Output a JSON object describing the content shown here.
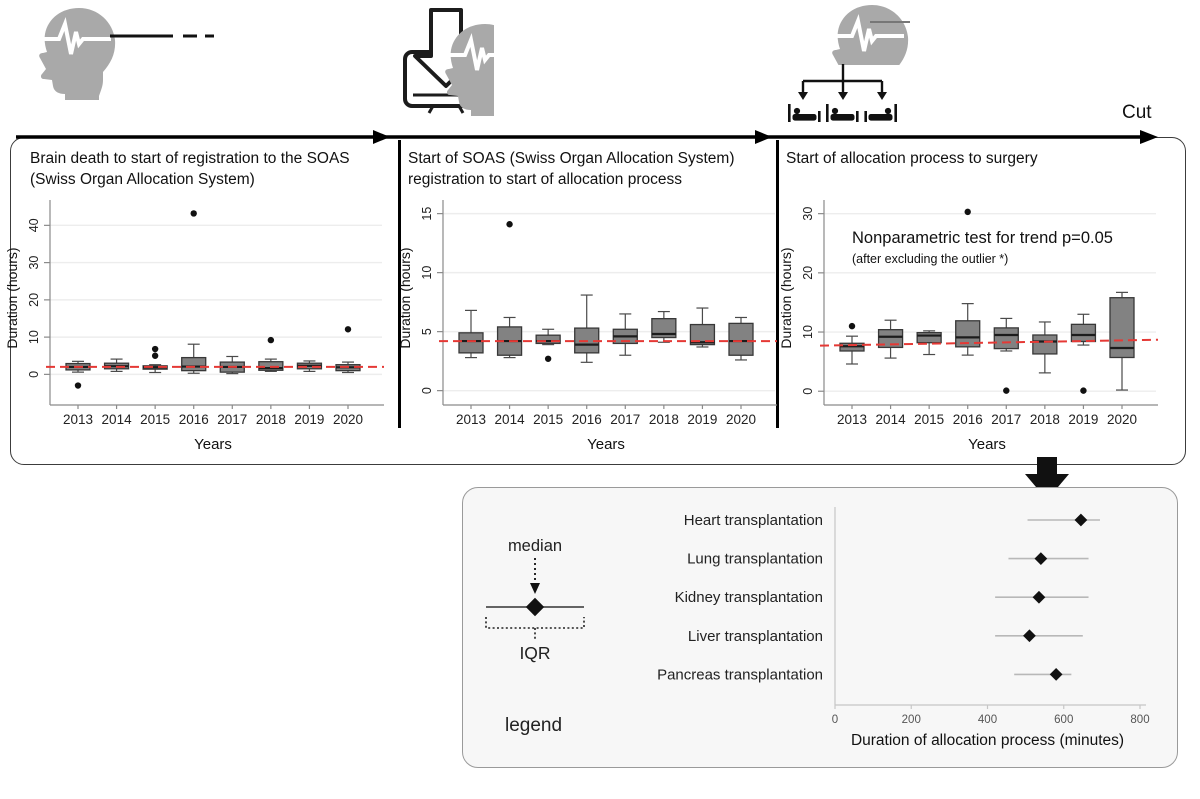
{
  "header": {
    "cut_label": "Cut",
    "icons": [
      {
        "name": "brain-death-head-eeg-icon"
      },
      {
        "name": "soas-registration-monitor-download-icon"
      },
      {
        "name": "allocation-head-to-beds-icon"
      }
    ]
  },
  "colors": {
    "accent_red": "#E53935",
    "box_fill": "#828282",
    "box_stroke": "#383838",
    "panel_bg": "#F7F7F7",
    "gridline": "#ededed"
  },
  "legend_box": {
    "median_label": "median",
    "iqr_label": "IQR",
    "caption": "legend"
  },
  "chart_data": [
    {
      "id": "phase1",
      "type": "box",
      "title": "Brain death to start of registration to the SOAS (Swiss Organ Allocation System)",
      "xlabel": "Years",
      "ylabel": "Duration (hours)",
      "categories": [
        "2013",
        "2014",
        "2015",
        "2016",
        "2017",
        "2018",
        "2019",
        "2020"
      ],
      "ylim": [
        -5,
        46
      ],
      "yticks": [
        0,
        10,
        20,
        30,
        40
      ],
      "refline": {
        "style": "dashed",
        "color": "#E53935",
        "y": 2
      },
      "boxes": [
        {
          "lo": 0.6,
          "q1": 1.2,
          "med": 2.0,
          "q3": 2.9,
          "hi": 3.5,
          "outliers": [
            -3
          ]
        },
        {
          "lo": 0.8,
          "q1": 1.5,
          "med": 2.2,
          "q3": 3.0,
          "hi": 4.1,
          "outliers": []
        },
        {
          "lo": 0.5,
          "q1": 1.4,
          "med": 1.9,
          "q3": 2.3,
          "hi": 2.6,
          "outliers": [
            5,
            6.8
          ]
        },
        {
          "lo": 0.3,
          "q1": 1.0,
          "med": 2.1,
          "q3": 4.5,
          "hi": 8.1,
          "outliers": [
            43.2
          ]
        },
        {
          "lo": 0.2,
          "q1": 0.6,
          "med": 2.0,
          "q3": 3.3,
          "hi": 4.8,
          "outliers": []
        },
        {
          "lo": 0.8,
          "q1": 1.1,
          "med": 1.7,
          "q3": 3.4,
          "hi": 4.1,
          "outliers": [
            9.2
          ]
        },
        {
          "lo": 0.8,
          "q1": 1.5,
          "med": 2.3,
          "q3": 3.0,
          "hi": 3.6,
          "outliers": []
        },
        {
          "lo": 0.5,
          "q1": 1.0,
          "med": 1.9,
          "q3": 2.6,
          "hi": 3.3,
          "outliers": [
            12.1
          ]
        }
      ]
    },
    {
      "id": "phase2",
      "type": "box",
      "title": "Start of SOAS (Swiss Organ Allocation System) registration to start of allocation process",
      "xlabel": "Years",
      "ylabel": "Duration (hours)",
      "categories": [
        "2013",
        "2014",
        "2015",
        "2016",
        "2017",
        "2018",
        "2019",
        "2020"
      ],
      "ylim": [
        -0.2,
        15.9
      ],
      "yticks": [
        0,
        5,
        10,
        15
      ],
      "refline": {
        "style": "dashed",
        "color": "#E53935",
        "y": 4.2
      },
      "boxes": [
        {
          "lo": 2.8,
          "q1": 3.2,
          "med": 4.2,
          "q3": 4.9,
          "hi": 6.8,
          "outliers": []
        },
        {
          "lo": 2.8,
          "q1": 3.0,
          "med": 4.2,
          "q3": 5.4,
          "hi": 6.2,
          "outliers": [
            14.1
          ]
        },
        {
          "lo": 3.9,
          "q1": 4.0,
          "med": 4.2,
          "q3": 4.7,
          "hi": 5.2,
          "outliers": [
            2.7
          ]
        },
        {
          "lo": 2.4,
          "q1": 3.2,
          "med": 3.9,
          "q3": 5.3,
          "hi": 8.1,
          "outliers": []
        },
        {
          "lo": 3.0,
          "q1": 4.0,
          "med": 4.6,
          "q3": 5.2,
          "hi": 6.5,
          "outliers": []
        },
        {
          "lo": 4.1,
          "q1": 4.5,
          "med": 4.8,
          "q3": 6.1,
          "hi": 6.7,
          "outliers": []
        },
        {
          "lo": 3.7,
          "q1": 3.9,
          "med": 4.1,
          "q3": 5.6,
          "hi": 7.0,
          "outliers": []
        },
        {
          "lo": 2.6,
          "q1": 3.0,
          "med": 4.2,
          "q3": 5.7,
          "hi": 6.2,
          "outliers": []
        }
      ]
    },
    {
      "id": "phase3",
      "type": "box",
      "title": "Start of allocation process to surgery",
      "xlabel": "Years",
      "ylabel": "Duration (hours)",
      "categories": [
        "2013",
        "2014",
        "2015",
        "2016",
        "2017",
        "2018",
        "2019",
        "2020"
      ],
      "ylim": [
        -0.3,
        31.8
      ],
      "yticks": [
        0,
        10,
        20,
        30
      ],
      "refline": {
        "style": "dashed",
        "color": "#E53935",
        "y1": 7.7,
        "y2": 8.7
      },
      "annotation": {
        "line1": "Nonparametric test for trend p=0.05",
        "line2": "(after excluding the outlier *)"
      },
      "boxes": [
        {
          "lo": 4.6,
          "q1": 6.8,
          "med": 7.6,
          "q3": 8.1,
          "hi": 9.3,
          "outliers": [
            11
          ]
        },
        {
          "lo": 5.6,
          "q1": 7.4,
          "med": 9.2,
          "q3": 10.4,
          "hi": 12.0,
          "outliers": []
        },
        {
          "lo": 6.2,
          "q1": 8.2,
          "med": 9.4,
          "q3": 9.9,
          "hi": 10.2,
          "outliers": []
        },
        {
          "lo": 6.1,
          "q1": 7.5,
          "med": 9.1,
          "q3": 11.9,
          "hi": 14.8,
          "outliers": [
            30.3
          ]
        },
        {
          "lo": 6.8,
          "q1": 7.2,
          "med": 9.5,
          "q3": 10.7,
          "hi": 12.3,
          "outliers": [
            0.1
          ]
        },
        {
          "lo": 3.1,
          "q1": 6.3,
          "med": 8.4,
          "q3": 9.5,
          "hi": 11.7,
          "outliers": []
        },
        {
          "lo": 7.8,
          "q1": 8.4,
          "med": 9.5,
          "q3": 11.3,
          "hi": 13.0,
          "outliers": [
            0.1
          ]
        },
        {
          "lo": 0.2,
          "q1": 5.7,
          "med": 7.3,
          "q3": 15.8,
          "hi": 16.7,
          "outliers": []
        }
      ]
    },
    {
      "id": "allocation_minutes",
      "type": "median-iqr",
      "xlabel": "Duration of allocation process (minutes)",
      "xlim": [
        0,
        800
      ],
      "xticks": [
        0,
        200,
        400,
        600,
        800
      ],
      "rows": [
        {
          "label": "Heart transplantation",
          "lo": 505,
          "median": 645,
          "hi": 695
        },
        {
          "label": "Lung transplantation",
          "lo": 455,
          "median": 540,
          "hi": 665
        },
        {
          "label": "Kidney transplantation",
          "lo": 420,
          "median": 535,
          "hi": 665
        },
        {
          "label": "Liver transplantation",
          "lo": 420,
          "median": 510,
          "hi": 650
        },
        {
          "label": "Pancreas transplantation",
          "lo": 470,
          "median": 580,
          "hi": 620
        }
      ]
    }
  ]
}
